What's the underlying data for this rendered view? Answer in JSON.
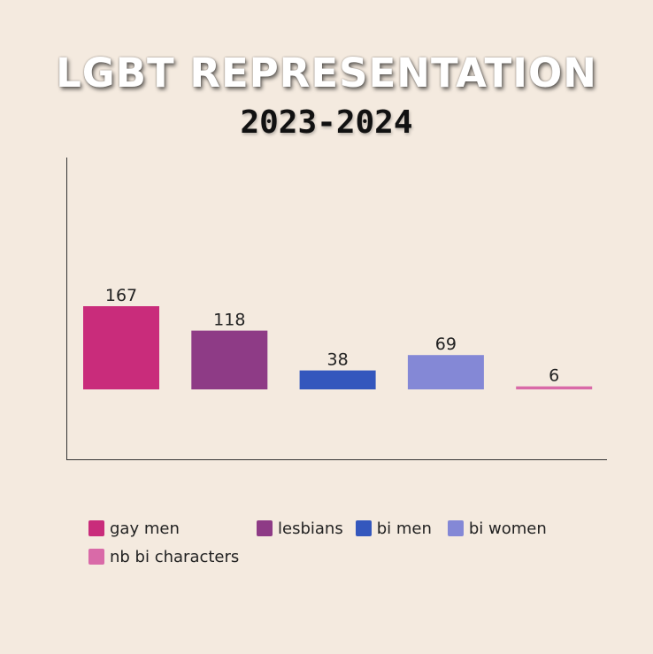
{
  "chart_data": {
    "type": "bar",
    "title": "LGBT REPRESENTATION",
    "subtitle": "2023-2024",
    "categories": [
      "gay men",
      "lesbians",
      "bi men",
      "bi women",
      "nb bi characters"
    ],
    "values": [
      167,
      118,
      38,
      69,
      6
    ],
    "colors": [
      "#c92c7b",
      "#8e3b86",
      "#3457bd",
      "#8488d6",
      "#d96aa8"
    ],
    "ylim": [
      0,
      167
    ],
    "xlabel": "",
    "ylabel": "",
    "grid": false,
    "legend_position": "bottom"
  }
}
